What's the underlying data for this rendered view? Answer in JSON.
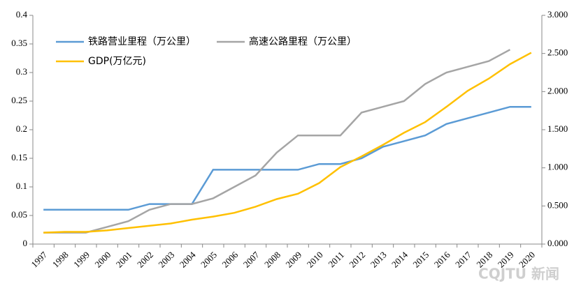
{
  "chart_data": {
    "type": "line",
    "categories": [
      "1997",
      "1998",
      "1999",
      "2000",
      "2001",
      "2002",
      "2003",
      "2004",
      "2005",
      "2006",
      "2007",
      "2008",
      "2009",
      "2010",
      "2011",
      "2012",
      "2013",
      "2014",
      "2015",
      "2016",
      "2017",
      "2018",
      "2019",
      "2020"
    ],
    "series": [
      {
        "name": "铁路营业里程（万公里）",
        "color": "#5b9bd5",
        "values": [
          0.06,
          0.06,
          0.06,
          0.06,
          0.06,
          0.07,
          0.07,
          0.07,
          0.13,
          0.13,
          0.13,
          0.13,
          0.13,
          0.14,
          0.14,
          0.15,
          0.17,
          0.18,
          0.19,
          0.21,
          0.22,
          0.23,
          0.24,
          0.24
        ]
      },
      {
        "name": "高速公路里程（万公里）",
        "color": "#a5a5a5",
        "values": [
          0.02,
          0.02,
          0.02,
          0.03,
          0.04,
          0.06,
          0.07,
          0.07,
          0.08,
          0.1,
          0.12,
          0.16,
          0.19,
          0.19,
          0.19,
          0.23,
          0.24,
          0.25,
          0.28,
          0.3,
          0.31,
          0.32,
          0.34,
          null
        ]
      },
      {
        "name": "GDP(万亿元)",
        "color": "#ffc000",
        "axis": "y2",
        "values": [
          0.15,
          0.16,
          0.16,
          0.18,
          0.21,
          0.24,
          0.27,
          0.32,
          0.36,
          0.41,
          0.49,
          0.59,
          0.66,
          0.8,
          1.01,
          1.15,
          1.3,
          1.46,
          1.6,
          1.8,
          2.01,
          2.17,
          2.36,
          2.51
        ]
      }
    ],
    "ylim": [
      0,
      0.4
    ],
    "yticks": [
      0,
      0.05,
      0.1,
      0.15,
      0.2,
      0.25,
      0.3,
      0.35,
      0.4
    ],
    "y2lim": [
      0,
      3
    ],
    "y2ticks": [
      {
        "value": 0,
        "label": "0.000"
      },
      {
        "value": 0.5,
        "label": "0.500"
      },
      {
        "value": 1,
        "label": "1.000"
      },
      {
        "value": 1.5,
        "label": "1.500"
      },
      {
        "value": 2,
        "label": "2.000"
      },
      {
        "value": 2.5,
        "label": "2.500"
      },
      {
        "value": 3,
        "label": "3.000"
      }
    ],
    "legend": "top-left",
    "watermark": "CQJTU 新闻"
  }
}
